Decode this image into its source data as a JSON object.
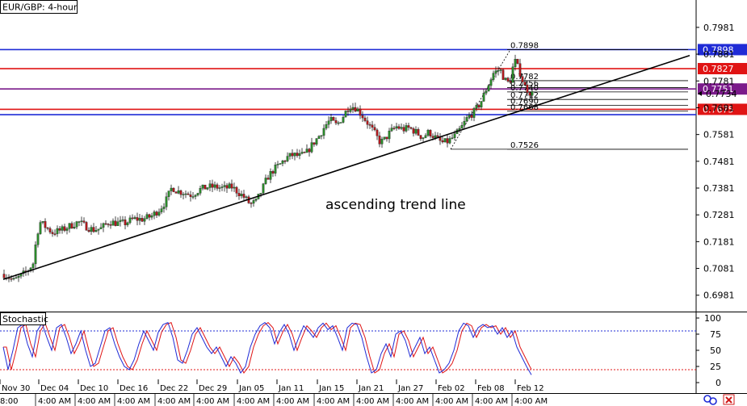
{
  "window": {
    "title": "EUR/GBP: 4-hour",
    "indicator_title": "Stochastic"
  },
  "annotation": "ascending trend line",
  "colors": {
    "bull": "#2a8a2a",
    "bear": "#b0181c",
    "wick": "#1a1a1a",
    "blue_level": "#1f2bd6",
    "red_level": "#e01414",
    "purple_level": "#7a1a8a",
    "trend": "#000000",
    "stoch_k": "#1f2bd6",
    "stoch_d": "#e01414",
    "stoch_level": "#1f2bd6"
  },
  "chart_data": {
    "type": "candlestick",
    "symbol": "EUR/GBP",
    "timeframe": "4-hour",
    "ylim": [
      0.6935,
      0.8035
    ],
    "y_ticks": [
      "0.7981",
      "0.7881",
      "0.7781",
      "0.7681",
      "0.7581",
      "0.7481",
      "0.7381",
      "0.7281",
      "0.7181",
      "0.7081",
      "0.6981"
    ],
    "x_date_labels": [
      "Nov 30",
      "Dec 04",
      "Dec 10",
      "Dec 16",
      "Dec 22",
      "Dec 29",
      "Jan 05",
      "Jan 11",
      "Jan 15",
      "Jan 21",
      "Jan 27",
      "Feb 02",
      "Feb 08",
      "Feb 12"
    ],
    "x_time_label": "4:00 AM",
    "x_first_label": "8:00",
    "price_path": [
      [
        0,
        0.706
      ],
      [
        5,
        0.705
      ],
      [
        12,
        0.7035
      ],
      [
        22,
        0.7055
      ],
      [
        30,
        0.7075
      ],
      [
        36,
        0.71
      ],
      [
        40,
        0.719
      ],
      [
        44,
        0.7255
      ],
      [
        52,
        0.7235
      ],
      [
        60,
        0.7215
      ],
      [
        72,
        0.7225
      ],
      [
        82,
        0.724
      ],
      [
        92,
        0.7255
      ],
      [
        100,
        0.724
      ],
      [
        110,
        0.7225
      ],
      [
        120,
        0.723
      ],
      [
        130,
        0.7255
      ],
      [
        140,
        0.725
      ],
      [
        150,
        0.725
      ],
      [
        160,
        0.7265
      ],
      [
        172,
        0.7265
      ],
      [
        182,
        0.7275
      ],
      [
        192,
        0.73
      ],
      [
        200,
        0.733
      ],
      [
        208,
        0.7385
      ],
      [
        214,
        0.737
      ],
      [
        222,
        0.7365
      ],
      [
        232,
        0.7355
      ],
      [
        242,
        0.7375
      ],
      [
        252,
        0.7385
      ],
      [
        262,
        0.7385
      ],
      [
        272,
        0.738
      ],
      [
        282,
        0.7385
      ],
      [
        290,
        0.7365
      ],
      [
        298,
        0.7345
      ],
      [
        305,
        0.732
      ],
      [
        312,
        0.733
      ],
      [
        318,
        0.7365
      ],
      [
        326,
        0.742
      ],
      [
        334,
        0.745
      ],
      [
        342,
        0.747
      ],
      [
        350,
        0.7495
      ],
      [
        358,
        0.7505
      ],
      [
        366,
        0.75
      ],
      [
        374,
        0.751
      ],
      [
        382,
        0.7545
      ],
      [
        390,
        0.7575
      ],
      [
        398,
        0.7615
      ],
      [
        404,
        0.7635
      ],
      [
        412,
        0.7615
      ],
      [
        420,
        0.765
      ],
      [
        428,
        0.769
      ],
      [
        436,
        0.768
      ],
      [
        444,
        0.765
      ],
      [
        450,
        0.7625
      ],
      [
        458,
        0.759
      ],
      [
        466,
        0.755
      ],
      [
        472,
        0.7565
      ],
      [
        478,
        0.759
      ],
      [
        486,
        0.761
      ],
      [
        494,
        0.76
      ],
      [
        502,
        0.7605
      ],
      [
        510,
        0.759
      ],
      [
        518,
        0.757
      ],
      [
        526,
        0.759
      ],
      [
        534,
        0.757
      ],
      [
        542,
        0.755
      ],
      [
        550,
        0.7555
      ],
      [
        558,
        0.7575
      ],
      [
        566,
        0.7605
      ],
      [
        574,
        0.7645
      ],
      [
        582,
        0.7665
      ],
      [
        590,
        0.77
      ],
      [
        598,
        0.7755
      ],
      [
        606,
        0.781
      ],
      [
        614,
        0.7825
      ],
      [
        620,
        0.7785
      ],
      [
        626,
        0.777
      ],
      [
        632,
        0.786
      ],
      [
        638,
        0.782
      ],
      [
        644,
        0.7765
      ],
      [
        650,
        0.774
      ],
      [
        654,
        0.7734
      ]
    ],
    "trend_line": {
      "from_bar": 0,
      "from_price": 0.704,
      "to_bar": 850,
      "to_price": 0.7876
    },
    "levels": [
      {
        "price": 0.7898,
        "color": "blue",
        "label": "0.7898"
      },
      {
        "price": 0.7827,
        "color": "red",
        "label": "0.7827"
      },
      {
        "price": 0.7751,
        "color": "purple",
        "label": "0.7751"
      },
      {
        "price": 0.7675,
        "color": "red",
        "label": "0.7675"
      },
      {
        "price": 0.7655,
        "color": "blue",
        "label": ""
      }
    ],
    "current_price": "0.7734",
    "fibonacci": {
      "high": 0.7898,
      "low": 0.7526,
      "levels": [
        {
          "price": 0.7898,
          "label": "0.7898"
        },
        {
          "price": 0.7782,
          "label": "0.7782"
        },
        {
          "price": 0.7756,
          "label": "0.7756"
        },
        {
          "price": 0.774,
          "label": "0.7740"
        },
        {
          "price": 0.7712,
          "label": "0.7712"
        },
        {
          "price": 0.769,
          "label": "0.7690"
        },
        {
          "price": 0.7668,
          "label": "0.7668"
        },
        {
          "price": 0.7526,
          "label": "0.7526"
        }
      ]
    },
    "stochastic": {
      "ylim": [
        0,
        100
      ],
      "y_ticks": [
        "100",
        "75",
        "50",
        "25",
        "0"
      ],
      "levels": [
        80,
        20
      ],
      "path": [
        [
          0,
          55
        ],
        [
          6,
          20
        ],
        [
          12,
          50
        ],
        [
          18,
          85
        ],
        [
          24,
          90
        ],
        [
          30,
          60
        ],
        [
          36,
          40
        ],
        [
          42,
          80
        ],
        [
          48,
          92
        ],
        [
          54,
          70
        ],
        [
          60,
          50
        ],
        [
          66,
          85
        ],
        [
          72,
          90
        ],
        [
          78,
          70
        ],
        [
          84,
          45
        ],
        [
          90,
          60
        ],
        [
          96,
          80
        ],
        [
          102,
          50
        ],
        [
          108,
          25
        ],
        [
          114,
          30
        ],
        [
          120,
          55
        ],
        [
          126,
          80
        ],
        [
          132,
          85
        ],
        [
          138,
          60
        ],
        [
          144,
          40
        ],
        [
          150,
          25
        ],
        [
          156,
          20
        ],
        [
          162,
          35
        ],
        [
          168,
          60
        ],
        [
          174,
          80
        ],
        [
          180,
          65
        ],
        [
          186,
          50
        ],
        [
          192,
          78
        ],
        [
          198,
          90
        ],
        [
          204,
          93
        ],
        [
          210,
          70
        ],
        [
          216,
          35
        ],
        [
          222,
          30
        ],
        [
          228,
          50
        ],
        [
          234,
          75
        ],
        [
          240,
          85
        ],
        [
          246,
          70
        ],
        [
          252,
          55
        ],
        [
          258,
          45
        ],
        [
          264,
          55
        ],
        [
          270,
          40
        ],
        [
          276,
          25
        ],
        [
          282,
          40
        ],
        [
          288,
          30
        ],
        [
          294,
          15
        ],
        [
          300,
          25
        ],
        [
          306,
          55
        ],
        [
          312,
          75
        ],
        [
          318,
          88
        ],
        [
          324,
          93
        ],
        [
          330,
          85
        ],
        [
          336,
          60
        ],
        [
          342,
          78
        ],
        [
          348,
          90
        ],
        [
          354,
          75
        ],
        [
          360,
          50
        ],
        [
          366,
          70
        ],
        [
          372,
          88
        ],
        [
          378,
          80
        ],
        [
          384,
          70
        ],
        [
          390,
          85
        ],
        [
          396,
          92
        ],
        [
          402,
          82
        ],
        [
          408,
          88
        ],
        [
          414,
          70
        ],
        [
          420,
          50
        ],
        [
          426,
          85
        ],
        [
          432,
          92
        ],
        [
          438,
          90
        ],
        [
          444,
          70
        ],
        [
          450,
          40
        ],
        [
          456,
          15
        ],
        [
          462,
          20
        ],
        [
          468,
          45
        ],
        [
          474,
          60
        ],
        [
          480,
          40
        ],
        [
          486,
          75
        ],
        [
          492,
          80
        ],
        [
          498,
          65
        ],
        [
          504,
          40
        ],
        [
          510,
          55
        ],
        [
          516,
          70
        ],
        [
          522,
          45
        ],
        [
          528,
          55
        ],
        [
          534,
          35
        ],
        [
          540,
          15
        ],
        [
          546,
          20
        ],
        [
          552,
          30
        ],
        [
          558,
          50
        ],
        [
          564,
          80
        ],
        [
          570,
          92
        ],
        [
          576,
          88
        ],
        [
          582,
          70
        ],
        [
          588,
          85
        ],
        [
          594,
          90
        ],
        [
          600,
          85
        ],
        [
          606,
          88
        ],
        [
          612,
          75
        ],
        [
          618,
          85
        ],
        [
          624,
          70
        ],
        [
          630,
          80
        ],
        [
          636,
          55
        ],
        [
          642,
          40
        ],
        [
          648,
          25
        ],
        [
          654,
          12
        ]
      ]
    }
  }
}
